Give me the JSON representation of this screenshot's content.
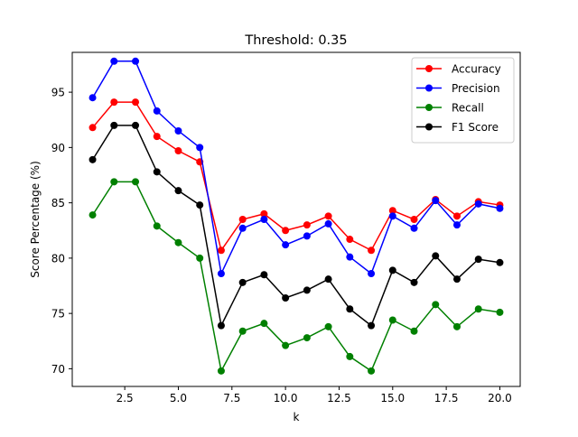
{
  "chart_data": {
    "type": "line",
    "title": "Threshold: 0.35",
    "xlabel": "k",
    "ylabel": "Score Percentage (%)",
    "xlim": [
      0.05,
      20.95
    ],
    "ylim": [
      68.4,
      98.6
    ],
    "xticks": [
      2.5,
      5.0,
      7.5,
      10.0,
      12.5,
      15.0,
      17.5,
      20.0
    ],
    "xtick_labels": [
      "2.5",
      "5.0",
      "7.5",
      "10.0",
      "12.5",
      "15.0",
      "17.5",
      "20.0"
    ],
    "yticks": [
      70,
      75,
      80,
      85,
      90,
      95
    ],
    "ytick_labels": [
      "70",
      "75",
      "80",
      "85",
      "90",
      "95"
    ],
    "grid": false,
    "legend_position": "top-right",
    "x": [
      1,
      2,
      3,
      4,
      5,
      6,
      7,
      8,
      9,
      10,
      11,
      12,
      13,
      14,
      15,
      16,
      17,
      18,
      19,
      20
    ],
    "series": [
      {
        "name": "Accuracy",
        "color": "#ff0000",
        "values": [
          91.8,
          94.1,
          94.1,
          91.0,
          89.7,
          88.7,
          80.7,
          83.5,
          84.0,
          82.5,
          83.0,
          83.8,
          81.7,
          80.7,
          84.3,
          83.5,
          85.3,
          83.8,
          85.1,
          84.8
        ]
      },
      {
        "name": "Precision",
        "color": "#0000ff",
        "values": [
          94.5,
          97.8,
          97.8,
          93.3,
          91.5,
          90.0,
          78.6,
          82.7,
          83.5,
          81.2,
          82.0,
          83.1,
          80.1,
          78.6,
          83.8,
          82.7,
          85.2,
          83.0,
          84.9,
          84.5
        ]
      },
      {
        "name": "Recall",
        "color": "#008000",
        "values": [
          83.9,
          86.9,
          86.9,
          82.9,
          81.4,
          80.0,
          69.8,
          73.4,
          74.1,
          72.1,
          72.8,
          73.8,
          71.1,
          69.8,
          74.4,
          73.4,
          75.8,
          73.8,
          75.4,
          75.1
        ]
      },
      {
        "name": "F1 Score",
        "color": "#000000",
        "values": [
          88.9,
          92.0,
          92.0,
          87.8,
          86.1,
          84.8,
          73.9,
          77.8,
          78.5,
          76.4,
          77.1,
          78.1,
          75.4,
          73.9,
          78.9,
          77.8,
          80.2,
          78.1,
          79.9,
          79.6
        ]
      }
    ]
  }
}
